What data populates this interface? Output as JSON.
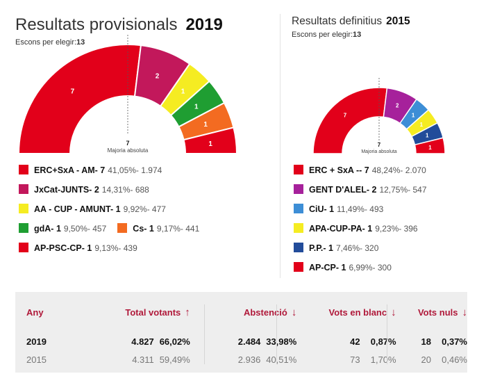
{
  "panels": [
    {
      "id": "2019",
      "title": "Resultats provisionals",
      "year": "2019",
      "subtitle_label": "Escons per elegir:",
      "subtitle_value": "13",
      "majority_value": "7",
      "majority_label": "Majoria absoluta"
    },
    {
      "id": "2015",
      "title": "Resultats definitius",
      "year": "2015",
      "subtitle_label": "Escons per elegir:",
      "subtitle_value": "13",
      "majority_value": "7",
      "majority_label": "Majoria absoluta"
    }
  ],
  "chart_data": [
    {
      "type": "pie",
      "variant": "parliament-semicircle",
      "title": "Resultats provisionals 2019",
      "total_seats": 13,
      "majority": 7,
      "parties": [
        {
          "name": "ERC+SxA - AM-",
          "seats": 7,
          "pct": "41,05%",
          "votes": "1.974",
          "color": "#e2001a"
        },
        {
          "name": "JxCat-JUNTS-",
          "seats": 2,
          "pct": "14,31%",
          "votes": "688",
          "color": "#c2185b"
        },
        {
          "name": "AA - CUP - AMUNT-",
          "seats": 1,
          "pct": "9,92%",
          "votes": "477",
          "color": "#f5ec22"
        },
        {
          "name": "gdA-",
          "seats": 1,
          "pct": "9,50%",
          "votes": "457",
          "color": "#1f9e32"
        },
        {
          "name": "Cs-",
          "seats": 1,
          "pct": "9,17%",
          "votes": "441",
          "color": "#f36b21"
        },
        {
          "name": "AP-PSC-CP-",
          "seats": 1,
          "pct": "9,13%",
          "votes": "439",
          "color": "#e2001a"
        }
      ]
    },
    {
      "type": "pie",
      "variant": "parliament-semicircle",
      "title": "Resultats definitius 2015",
      "total_seats": 13,
      "majority": 7,
      "parties": [
        {
          "name": "ERC + SxA --",
          "seats": 7,
          "pct": "48,24%",
          "votes": "2.070",
          "color": "#e2001a"
        },
        {
          "name": "GENT D'ALEL-",
          "seats": 2,
          "pct": "12,75%",
          "votes": "547",
          "color": "#a6219b"
        },
        {
          "name": "CiU-",
          "seats": 1,
          "pct": "11,49%",
          "votes": "493",
          "color": "#3d8ed6"
        },
        {
          "name": "APA-CUP-PA-",
          "seats": 1,
          "pct": "9,23%",
          "votes": "396",
          "color": "#f5ec22"
        },
        {
          "name": "P.P.-",
          "seats": 1,
          "pct": "7,46%",
          "votes": "320",
          "color": "#224c9a"
        },
        {
          "name": "AP-CP-",
          "seats": 1,
          "pct": "6,99%",
          "votes": "300",
          "color": "#e2001a"
        }
      ]
    }
  ],
  "stats": {
    "headers": {
      "any": "Any",
      "total": "Total votants",
      "abst": "Abstenció",
      "blanc": "Vots en blanc",
      "nuls": "Vots nuls"
    },
    "arrows": {
      "total": "↑",
      "abst": "↓",
      "blanc": "↓",
      "nuls": "↓"
    },
    "rows": [
      {
        "any": "2019",
        "total_v": "4.827",
        "total_p": "66,02%",
        "abst_v": "2.484",
        "abst_p": "33,98%",
        "blanc_v": "42",
        "blanc_p": "0,87%",
        "nuls_v": "18",
        "nuls_p": "0,37%"
      },
      {
        "any": "2015",
        "total_v": "4.311",
        "total_p": "59,49%",
        "abst_v": "2.936",
        "abst_p": "40,51%",
        "blanc_v": "73",
        "blanc_p": "1,70%",
        "nuls_v": "20",
        "nuls_p": "0,46%"
      }
    ]
  }
}
